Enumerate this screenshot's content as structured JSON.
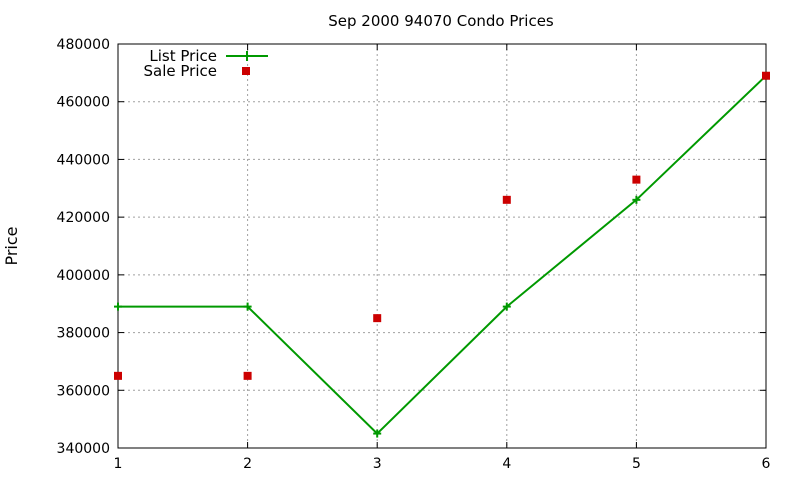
{
  "chart_data": {
    "type": "line",
    "title": "Sep 2000 94070 Condo Prices",
    "xlabel": "",
    "ylabel": "Price",
    "x": [
      1,
      2,
      3,
      4,
      5,
      6
    ],
    "xlim": [
      1,
      6
    ],
    "ylim": [
      340000,
      480000
    ],
    "x_ticks": [
      1,
      2,
      3,
      4,
      5,
      6
    ],
    "y_ticks": [
      340000,
      360000,
      380000,
      400000,
      420000,
      440000,
      460000,
      480000
    ],
    "grid": true,
    "legend_position": "top-left",
    "series": [
      {
        "name": "List Price",
        "style": "line+plus",
        "color": "#009900",
        "values": [
          389000,
          389000,
          345000,
          389000,
          426000,
          469000
        ]
      },
      {
        "name": "Sale Price",
        "style": "square-points",
        "color": "#cc0000",
        "values": [
          365000,
          365000,
          385000,
          426000,
          433000,
          469000
        ]
      }
    ]
  }
}
